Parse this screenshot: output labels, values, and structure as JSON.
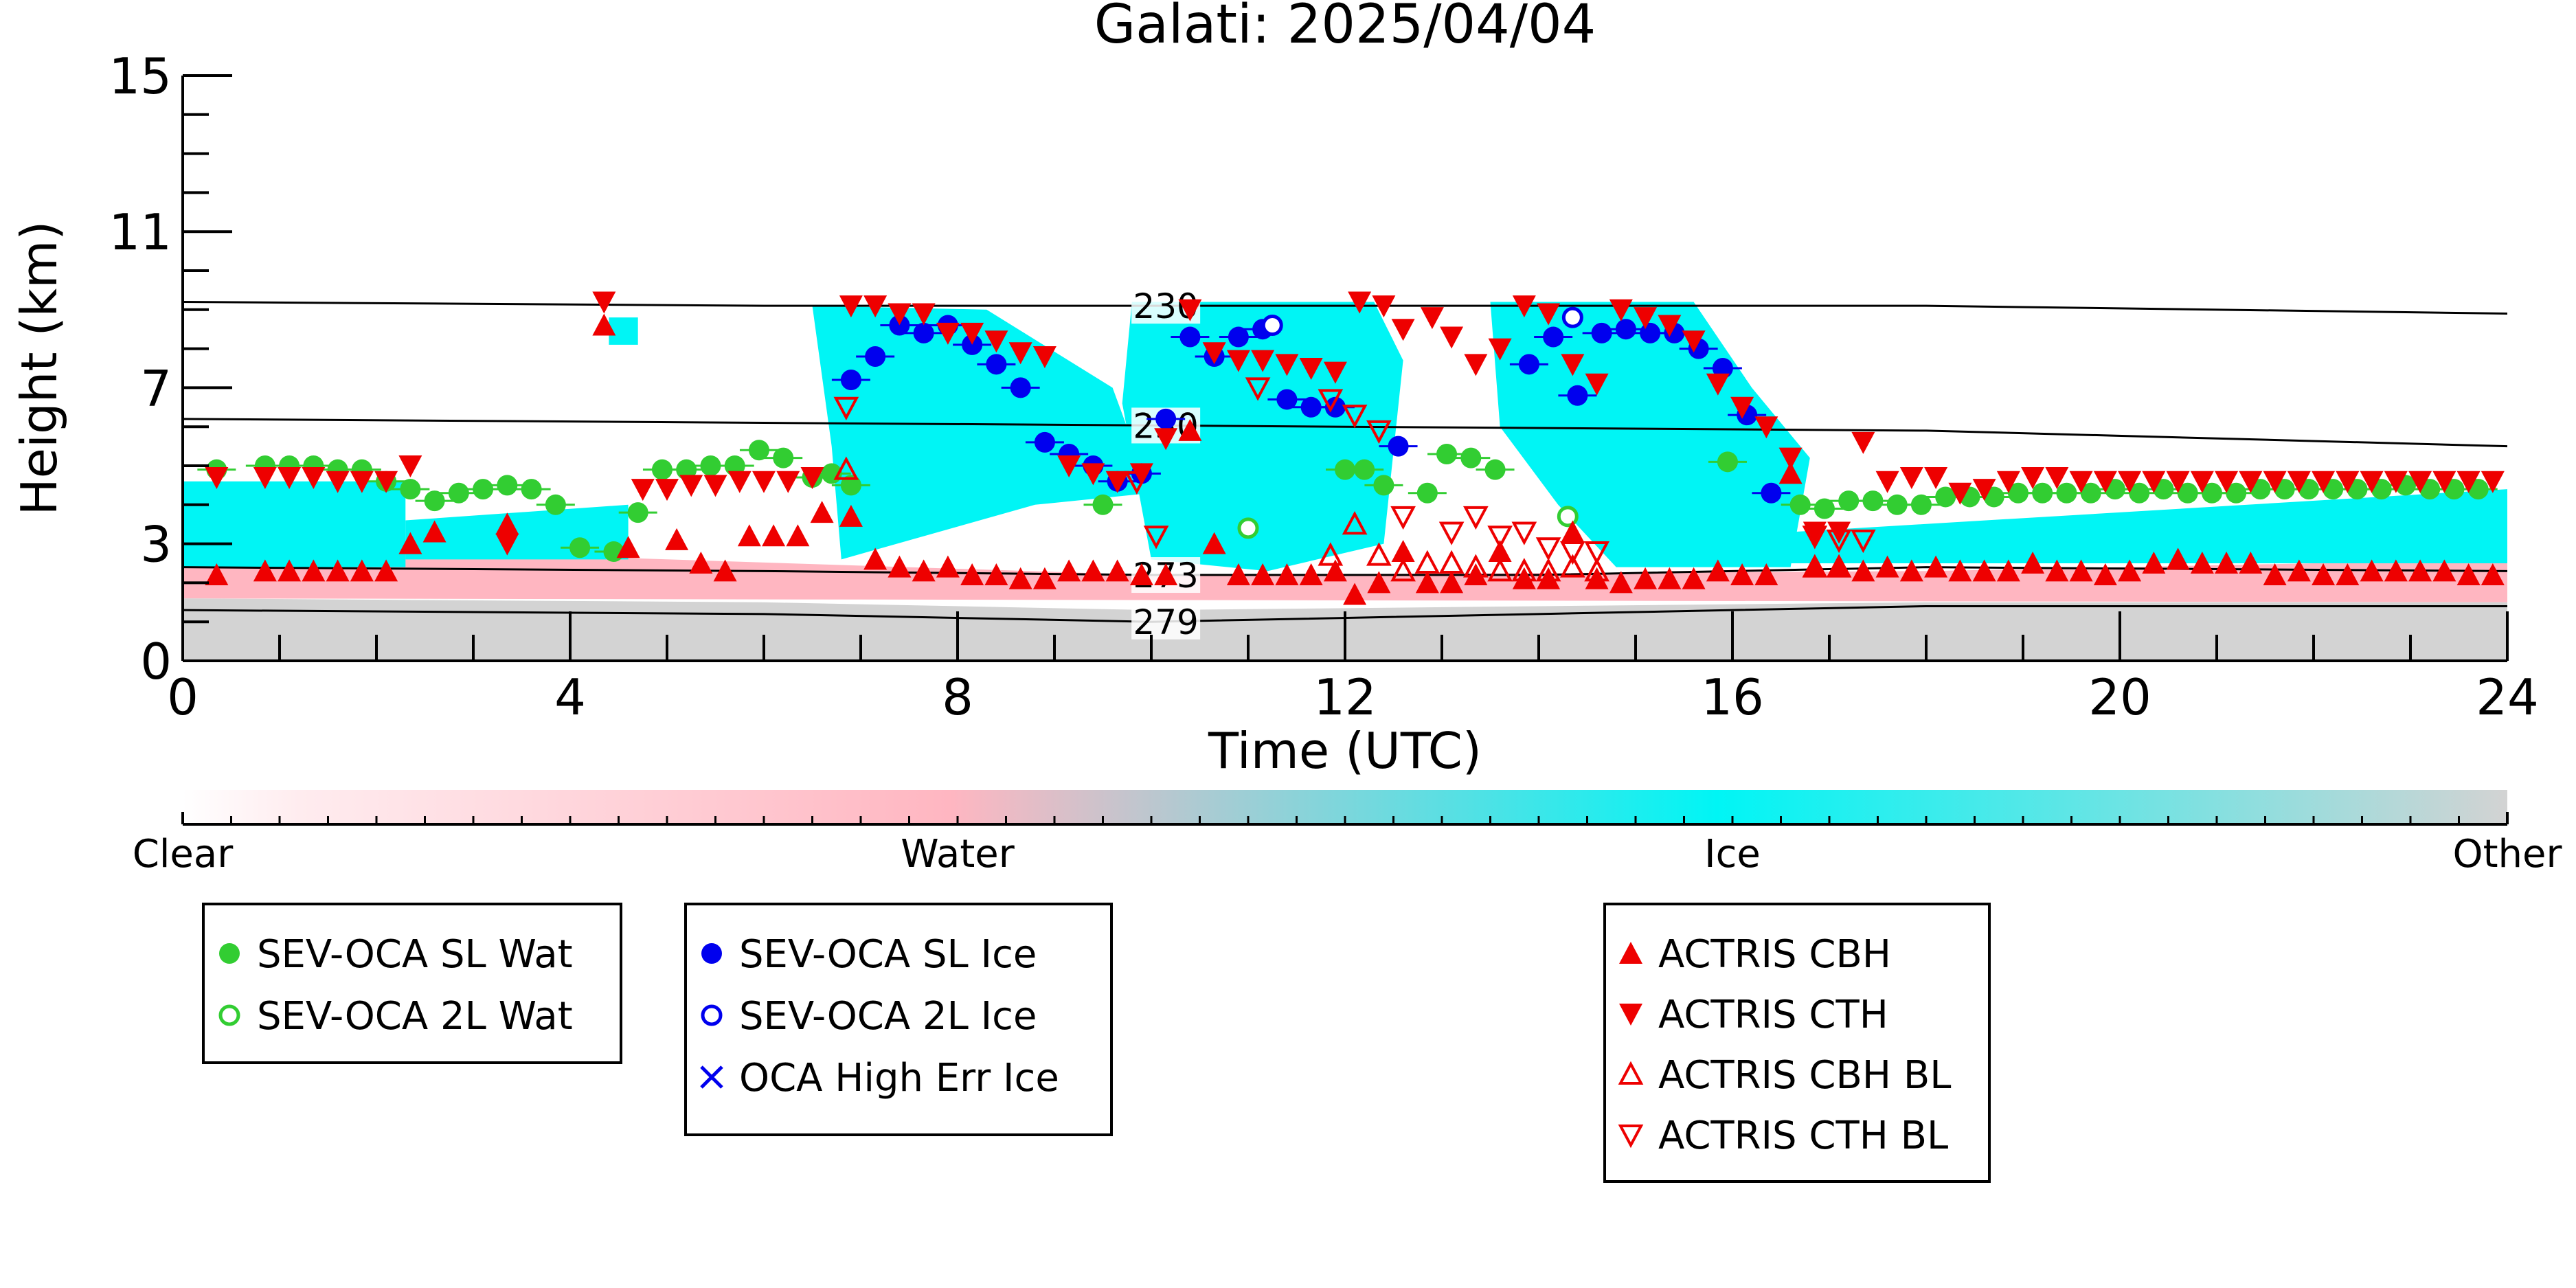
{
  "chart_data": {
    "type": "scatter",
    "title": "Galati: 2025/04/04",
    "xlabel": "Time (UTC)",
    "ylabel": "Height (km)",
    "xlim": [
      0,
      24
    ],
    "ylim": [
      0,
      15
    ],
    "x_ticks": [
      0,
      4,
      8,
      12,
      16,
      20,
      24
    ],
    "y_ticks": [
      0,
      3,
      7,
      11,
      15
    ],
    "grid": false,
    "colorbar": {
      "labels": [
        "Clear",
        "Water",
        "Ice",
        "Other"
      ],
      "colors": [
        "#ffffff",
        "#ffb6c1",
        "#00f5f5",
        "#d3d3d3"
      ]
    },
    "isotherms": [
      {
        "label": "230",
        "points": [
          [
            0,
            9.2
          ],
          [
            6,
            9.1
          ],
          [
            12,
            9.1
          ],
          [
            18,
            9.1
          ],
          [
            24,
            8.9
          ]
        ]
      },
      {
        "label": "250",
        "points": [
          [
            0,
            6.2
          ],
          [
            6,
            6.1
          ],
          [
            12,
            6.0
          ],
          [
            18,
            5.9
          ],
          [
            24,
            5.5
          ]
        ]
      },
      {
        "label": "273",
        "points": [
          [
            0,
            2.4
          ],
          [
            6,
            2.3
          ],
          [
            10,
            2.2
          ],
          [
            14,
            2.2
          ],
          [
            18,
            2.4
          ],
          [
            24,
            2.3
          ]
        ]
      },
      {
        "label": "279",
        "points": [
          [
            0,
            1.3
          ],
          [
            6,
            1.2
          ],
          [
            10,
            1.0
          ],
          [
            14,
            1.2
          ],
          [
            18,
            1.4
          ],
          [
            24,
            1.4
          ]
        ]
      }
    ],
    "cloud_regions": [
      {
        "class": "Water",
        "poly": [
          [
            0,
            3.0
          ],
          [
            10,
            2.2
          ],
          [
            18,
            2.3
          ],
          [
            24,
            2.6
          ],
          [
            24,
            1.5
          ],
          [
            0,
            1.6
          ]
        ]
      },
      {
        "class": "Other",
        "poly": [
          [
            0,
            1.6
          ],
          [
            6,
            1.5
          ],
          [
            10,
            1.3
          ],
          [
            14,
            1.4
          ],
          [
            18,
            1.5
          ],
          [
            24,
            1.5
          ],
          [
            24,
            0
          ],
          [
            0,
            0
          ]
        ]
      },
      {
        "class": "Ice",
        "poly": [
          [
            0,
            4.6
          ],
          [
            2.3,
            4.6
          ],
          [
            2.3,
            2.4
          ],
          [
            0,
            2.4
          ]
        ]
      },
      {
        "class": "Ice",
        "poly": [
          [
            2.3,
            3.6
          ],
          [
            4.6,
            4.0
          ],
          [
            4.6,
            2.6
          ],
          [
            2.3,
            2.6
          ]
        ]
      },
      {
        "class": "Ice",
        "poly": [
          [
            4.4,
            8.8
          ],
          [
            4.7,
            8.8
          ],
          [
            4.7,
            8.1
          ],
          [
            4.4,
            8.1
          ]
        ]
      },
      {
        "class": "Ice",
        "poly": [
          [
            6.5,
            9.1
          ],
          [
            8.3,
            9.0
          ],
          [
            9.6,
            7.0
          ],
          [
            10.0,
            4.3
          ],
          [
            8.8,
            4.0
          ],
          [
            6.8,
            2.6
          ],
          [
            6.7,
            5.5
          ]
        ]
      },
      {
        "class": "Ice",
        "poly": [
          [
            9.8,
            9.2
          ],
          [
            12.3,
            9.2
          ],
          [
            12.6,
            7.7
          ],
          [
            12.4,
            3.0
          ],
          [
            11.2,
            2.3
          ],
          [
            10.0,
            2.6
          ],
          [
            9.7,
            6.6
          ]
        ]
      },
      {
        "class": "Ice",
        "poly": [
          [
            13.5,
            9.2
          ],
          [
            15.6,
            9.2
          ],
          [
            16.2,
            7.0
          ],
          [
            16.8,
            5.2
          ],
          [
            16.6,
            2.4
          ],
          [
            14.8,
            2.4
          ],
          [
            14.2,
            4.0
          ],
          [
            13.6,
            6.0
          ]
        ]
      },
      {
        "class": "Ice",
        "poly": [
          [
            16.6,
            3.3
          ],
          [
            24,
            4.4
          ],
          [
            24,
            2.5
          ],
          [
            16.6,
            2.5
          ]
        ]
      }
    ],
    "series": [
      {
        "name": "SEV-OCA SL Wat",
        "marker": "filled-circle",
        "color": "#32cd32",
        "x": [
          0.35,
          0.85,
          1.1,
          1.35,
          1.6,
          1.85,
          2.1,
          2.35,
          2.6,
          2.85,
          3.1,
          3.35,
          3.6,
          3.85,
          4.1,
          4.45,
          4.7,
          4.95,
          5.2,
          5.45,
          5.7,
          5.95,
          6.2,
          6.5,
          6.7,
          6.9,
          9.5,
          12.0,
          12.2,
          12.4,
          12.85,
          13.05,
          13.3,
          13.55,
          15.95,
          16.7,
          16.95,
          17.2,
          17.45,
          17.7,
          17.95,
          18.2,
          18.45,
          18.7,
          18.95,
          19.2,
          19.45,
          19.7,
          19.95,
          20.2,
          20.45,
          20.7,
          20.95,
          21.2,
          21.45,
          21.7,
          21.95,
          22.2,
          22.45,
          22.7,
          22.95,
          23.2,
          23.45,
          23.7
        ],
        "y": [
          4.9,
          5.0,
          5.0,
          5.0,
          4.9,
          4.9,
          4.6,
          4.4,
          4.1,
          4.3,
          4.4,
          4.5,
          4.4,
          4.0,
          2.9,
          2.8,
          3.8,
          4.9,
          4.9,
          5.0,
          5.0,
          5.4,
          5.2,
          4.7,
          4.8,
          4.5,
          4.0,
          4.9,
          4.9,
          4.5,
          4.3,
          5.3,
          5.2,
          4.9,
          5.1,
          4.0,
          3.9,
          4.1,
          4.1,
          4.0,
          4.0,
          4.2,
          4.2,
          4.2,
          4.3,
          4.3,
          4.3,
          4.3,
          4.4,
          4.3,
          4.4,
          4.3,
          4.3,
          4.3,
          4.4,
          4.4,
          4.4,
          4.4,
          4.4,
          4.4,
          4.5,
          4.4,
          4.4,
          4.4
        ]
      },
      {
        "name": "SEV-OCA 2L Wat",
        "marker": "open-circle",
        "color": "#32cd32",
        "x": [
          11.0,
          14.3
        ],
        "y": [
          3.4,
          3.7
        ]
      },
      {
        "name": "SEV-OCA SL Ice",
        "marker": "filled-circle",
        "color": "#0000ee",
        "x": [
          6.9,
          7.15,
          7.4,
          7.65,
          7.9,
          8.15,
          8.4,
          8.65,
          8.9,
          9.15,
          9.4,
          9.65,
          9.9,
          10.15,
          10.4,
          10.65,
          10.9,
          11.15,
          11.4,
          11.65,
          11.9,
          12.55,
          13.9,
          14.15,
          14.4,
          14.65,
          14.9,
          15.15,
          15.4,
          15.65,
          15.9,
          16.15,
          16.4
        ],
        "y": [
          7.2,
          7.8,
          8.6,
          8.4,
          8.6,
          8.1,
          7.6,
          7.0,
          5.6,
          5.3,
          5.0,
          4.6,
          4.8,
          6.2,
          8.3,
          7.8,
          8.3,
          8.5,
          6.7,
          6.5,
          6.5,
          5.5,
          7.6,
          8.3,
          6.8,
          8.4,
          8.5,
          8.4,
          8.4,
          8.0,
          7.5,
          6.3,
          4.3
        ]
      },
      {
        "name": "SEV-OCA 2L Ice",
        "marker": "open-circle",
        "color": "#0000ee",
        "x": [
          11.25,
          14.35
        ],
        "y": [
          8.6,
          8.8
        ]
      },
      {
        "name": "OCA High Err Ice",
        "marker": "x",
        "color": "#0000ee",
        "x": [],
        "y": []
      },
      {
        "name": "ACTRIS CBH",
        "marker": "triangle-up",
        "color": "#ee0000",
        "x": [
          0.35,
          0.85,
          1.1,
          1.35,
          1.6,
          1.85,
          2.1,
          2.35,
          2.6,
          3.35,
          4.35,
          4.6,
          5.1,
          5.35,
          5.6,
          5.85,
          6.1,
          6.35,
          6.6,
          6.9,
          7.15,
          7.4,
          7.65,
          7.9,
          8.15,
          8.4,
          8.65,
          8.9,
          9.15,
          9.4,
          9.65,
          9.9,
          10.15,
          10.4,
          10.65,
          10.9,
          11.15,
          11.4,
          11.65,
          11.9,
          12.1,
          12.35,
          12.6,
          12.85,
          13.1,
          13.35,
          13.6,
          13.85,
          14.1,
          14.35,
          14.6,
          14.85,
          15.1,
          15.35,
          15.6,
          15.85,
          16.1,
          16.35,
          16.6,
          16.85,
          17.1,
          17.35,
          17.6,
          17.85,
          18.1,
          18.35,
          18.6,
          18.85,
          19.1,
          19.35,
          19.6,
          19.85,
          20.1,
          20.35,
          20.6,
          20.85,
          21.1,
          21.35,
          21.6,
          21.85,
          22.1,
          22.35,
          22.6,
          22.85,
          23.1,
          23.35,
          23.6,
          23.85
        ],
        "y": [
          2.2,
          2.3,
          2.3,
          2.3,
          2.3,
          2.3,
          2.3,
          3.0,
          3.3,
          3.5,
          8.6,
          2.9,
          3.1,
          2.5,
          2.3,
          3.2,
          3.2,
          3.2,
          3.8,
          3.7,
          2.6,
          2.4,
          2.3,
          2.4,
          2.2,
          2.2,
          2.1,
          2.1,
          2.3,
          2.3,
          2.3,
          2.2,
          2.2,
          5.9,
          3.0,
          2.2,
          2.2,
          2.2,
          2.2,
          2.3,
          1.7,
          2.0,
          2.8,
          2.0,
          2.0,
          2.2,
          2.8,
          2.1,
          2.1,
          3.3,
          2.1,
          2.0,
          2.1,
          2.1,
          2.1,
          2.3,
          2.2,
          2.2,
          4.8,
          2.4,
          2.4,
          2.3,
          2.4,
          2.3,
          2.4,
          2.3,
          2.3,
          2.3,
          2.5,
          2.3,
          2.3,
          2.2,
          2.3,
          2.5,
          2.6,
          2.5,
          2.5,
          2.5,
          2.2,
          2.3,
          2.2,
          2.2,
          2.3,
          2.3,
          2.3,
          2.3,
          2.2,
          2.2
        ]
      },
      {
        "name": "ACTRIS CTH",
        "marker": "triangle-down",
        "color": "#ee0000",
        "x": [
          0.35,
          0.85,
          1.1,
          1.35,
          1.6,
          1.85,
          2.1,
          2.35,
          3.35,
          4.35,
          4.75,
          5.0,
          5.25,
          5.5,
          5.75,
          6.0,
          6.25,
          6.5,
          6.9,
          7.15,
          7.4,
          7.65,
          7.9,
          8.15,
          8.4,
          8.65,
          8.9,
          9.15,
          9.4,
          9.65,
          9.9,
          10.15,
          10.4,
          10.65,
          10.9,
          11.15,
          11.4,
          11.65,
          11.9,
          12.15,
          12.4,
          12.6,
          12.9,
          13.1,
          13.35,
          13.6,
          13.85,
          14.1,
          14.35,
          14.6,
          14.85,
          15.1,
          15.35,
          15.6,
          15.85,
          16.1,
          16.35,
          16.6,
          16.85,
          17.1,
          17.35,
          17.6,
          17.85,
          18.1,
          18.35,
          18.6,
          18.85,
          19.1,
          19.35,
          19.6,
          19.85,
          20.1,
          20.35,
          20.6,
          20.85,
          21.1,
          21.35,
          21.6,
          21.85,
          22.1,
          22.35,
          22.6,
          22.85,
          23.1,
          23.35,
          23.6,
          23.85
        ],
        "y": [
          4.7,
          4.7,
          4.7,
          4.7,
          4.6,
          4.6,
          4.6,
          5.0,
          3.0,
          9.2,
          4.4,
          4.4,
          4.5,
          4.5,
          4.6,
          4.6,
          4.6,
          4.7,
          9.1,
          9.1,
          8.9,
          8.9,
          8.4,
          8.4,
          8.2,
          7.9,
          7.8,
          5.0,
          4.8,
          4.6,
          4.8,
          5.7,
          9.0,
          7.9,
          7.7,
          7.7,
          7.6,
          7.5,
          7.4,
          9.2,
          9.1,
          8.5,
          8.8,
          8.3,
          7.6,
          8.0,
          9.1,
          8.9,
          7.6,
          7.1,
          9.0,
          8.8,
          8.6,
          8.2,
          7.1,
          6.5,
          6.0,
          5.2,
          3.3,
          3.3,
          5.6,
          4.6,
          4.7,
          4.7,
          4.3,
          4.4,
          4.6,
          4.7,
          4.7,
          4.6,
          4.6,
          4.6,
          4.6,
          4.6,
          4.6,
          4.6,
          4.6,
          4.6,
          4.6,
          4.6,
          4.6,
          4.6,
          4.6,
          4.6,
          4.6,
          4.6,
          4.6
        ]
      },
      {
        "name": "ACTRIS CBH BL",
        "marker": "open-triangle-up",
        "color": "#ee0000",
        "x": [
          6.85,
          11.85,
          12.1,
          12.35,
          12.6,
          12.85,
          13.1,
          13.35,
          13.6,
          13.85,
          14.1,
          14.35,
          14.6,
          16.85,
          17.1
        ],
        "y": [
          4.9,
          2.7,
          3.5,
          2.7,
          2.3,
          2.5,
          2.5,
          2.4,
          2.3,
          2.3,
          2.3,
          2.4,
          2.3,
          2.4,
          2.4
        ]
      },
      {
        "name": "ACTRIS CTH BL",
        "marker": "open-triangle-down",
        "color": "#ee0000",
        "x": [
          6.85,
          9.85,
          10.05,
          11.1,
          11.85,
          12.1,
          12.35,
          12.6,
          13.1,
          13.35,
          13.6,
          13.85,
          14.1,
          14.35,
          14.6,
          16.85,
          17.1,
          17.35
        ],
        "y": [
          6.5,
          4.6,
          3.2,
          7.0,
          6.7,
          6.3,
          5.9,
          3.7,
          3.3,
          3.7,
          3.2,
          3.3,
          2.9,
          2.8,
          2.8,
          3.2,
          3.1,
          3.1
        ]
      }
    ],
    "legend_groups": [
      [
        "SEV-OCA SL Wat",
        "SEV-OCA 2L Wat"
      ],
      [
        "SEV-OCA SL Ice",
        "SEV-OCA 2L Ice",
        "OCA High Err Ice"
      ],
      [
        "ACTRIS CBH",
        "ACTRIS CTH",
        "ACTRIS CBH BL",
        "ACTRIS CTH BL"
      ]
    ],
    "legend_placement": "bottom"
  }
}
